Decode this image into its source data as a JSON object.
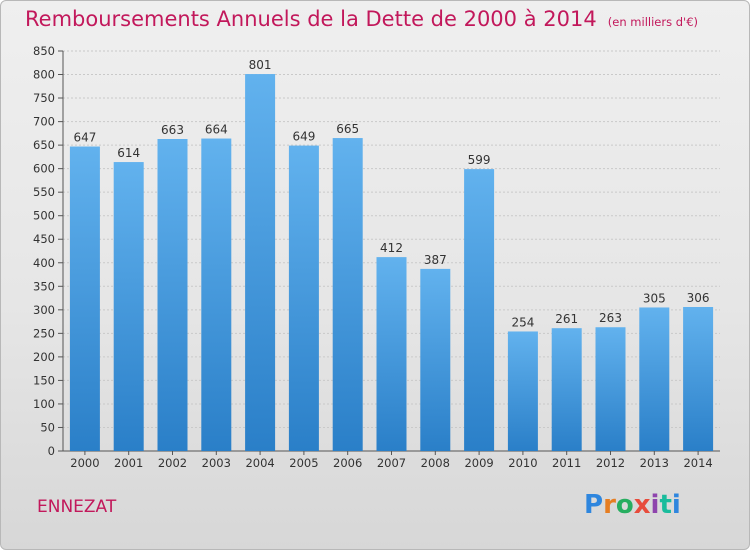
{
  "title": "Remboursements Annuels de la Dette de 2000 à 2014",
  "unit": "(en milliers d'€)",
  "commune": "ENNEZAT",
  "brand": "Proxiti",
  "colors": {
    "bar_top": "#62b2ee",
    "bar_bottom": "#2a7fc8",
    "title": "#c2185b",
    "grid": "#c9c9c9"
  },
  "chart_data": {
    "type": "bar",
    "categories": [
      "2000",
      "2001",
      "2002",
      "2003",
      "2004",
      "2005",
      "2006",
      "2007",
      "2008",
      "2009",
      "2010",
      "2011",
      "2012",
      "2013",
      "2014"
    ],
    "values": [
      647,
      614,
      663,
      664,
      801,
      649,
      665,
      412,
      387,
      599,
      254,
      261,
      263,
      305,
      306
    ],
    "ylim": [
      0,
      850
    ],
    "yticks": [
      0,
      50,
      100,
      150,
      200,
      250,
      300,
      350,
      400,
      450,
      500,
      550,
      600,
      650,
      700,
      750,
      800,
      850
    ],
    "grid": true
  }
}
